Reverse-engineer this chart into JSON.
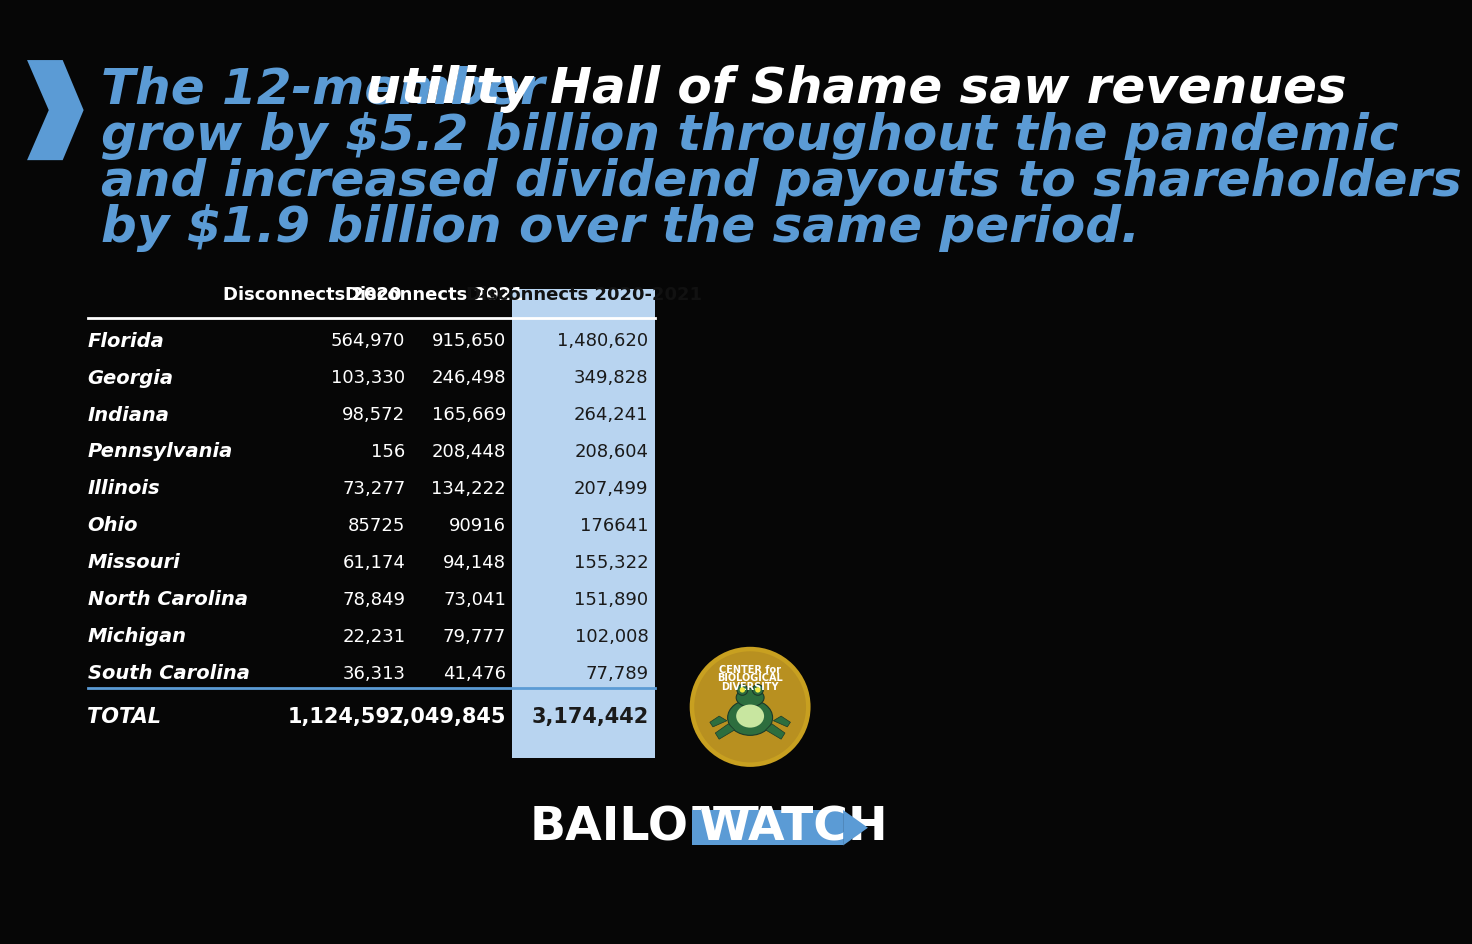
{
  "bg_color": "#060606",
  "blue_accent": "#5b9bd5",
  "title_line1_blue": "The 12-member",
  "title_line1_white": " utility Hall of Shame saw revenues",
  "title_line2": "grow by $5.2 billion throughout the pandemic",
  "title_line3": "and increased dividend payouts to shareholders",
  "title_line4": "by $1.9 billion over the same period.",
  "col_headers": [
    "",
    "Disconnects 2020",
    "Disconnects 2021",
    "Disconnects 2020-2021"
  ],
  "states": [
    "Florida",
    "Georgia",
    "Indiana",
    "Pennsylvania",
    "Illinois",
    "Ohio",
    "Missouri",
    "North Carolina",
    "Michigan",
    "South Carolina"
  ],
  "disc_2020": [
    "564,970",
    "103,330",
    "98,572",
    "156",
    "73,277",
    "85725",
    "61,174",
    "78,849",
    "22,231",
    "36,313"
  ],
  "disc_2021": [
    "915,650",
    "246,498",
    "165,669",
    "208,448",
    "134,222",
    "90916",
    "94,148",
    "73,041",
    "79,777",
    "41,476"
  ],
  "disc_total": [
    "1,480,620",
    "349,828",
    "264,241",
    "208,604",
    "207,499",
    "176641",
    "155,322",
    "151,890",
    "102,008",
    "77,789"
  ],
  "total_row": [
    "TOTAL",
    "1,124,597",
    "2,049,845",
    "3,174,442"
  ],
  "highlight_col_bg": "#b8d4f0",
  "logo_gold": "#c8a020",
  "logo_gold_inner": "#b89020",
  "frog_green": "#2d6e3e",
  "frog_belly": "#c8e6a0",
  "bailout_text": "BAILOUT",
  "watch_text": "WATCH"
}
